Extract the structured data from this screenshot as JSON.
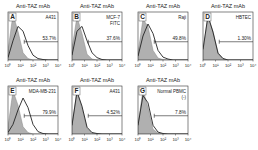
{
  "chart_data": [
    {
      "type": "line",
      "panel_label": "A",
      "title": "Anti-TAZ mAb",
      "annotations": [
        "A431",
        "53.7%"
      ],
      "gate": [
        20,
        10000
      ],
      "log": "x",
      "tick_labels": "x",
      "xlim": [
        1,
        10000
      ],
      "ylim": [
        0,
        100
      ],
      "xticks": [
        {
          "value": 1,
          "label": "10⁰"
        },
        {
          "value": 10,
          "label": "10¹"
        },
        {
          "value": 100,
          "label": "10²"
        },
        {
          "value": 1000,
          "label": "10³"
        },
        {
          "value": 10000,
          "label": "10⁴"
        }
      ],
      "x": [
        1,
        2.5,
        6.3,
        16,
        40,
        100,
        250,
        630,
        1600,
        4000,
        10000
      ],
      "series": [
        {
          "type": "area",
          "color": "#b0b0b0",
          "values": [
            20,
            95,
            60,
            15,
            3,
            0,
            0,
            0,
            0,
            0,
            0
          ]
        },
        {
          "type": "line",
          "color": "#222222",
          "values": [
            5,
            40,
            70,
            60,
            30,
            10,
            3,
            1,
            0,
            0,
            0
          ]
        }
      ]
    },
    {
      "type": "line",
      "panel_label": "B",
      "title": "Anti-TAZ mAb",
      "annotations": [
        "MCF-7",
        "FITC",
        "37.6%"
      ],
      "gate": [
        20,
        10000
      ],
      "log": "x",
      "tick_labels": "x",
      "xlim": [
        1,
        10000
      ],
      "ylim": [
        0,
        100
      ],
      "xticks": [
        {
          "value": 1,
          "label": "10⁰"
        },
        {
          "value": 10,
          "label": "10¹"
        },
        {
          "value": 100,
          "label": "10²"
        },
        {
          "value": 1000,
          "label": "10³"
        },
        {
          "value": 10000,
          "label": "10⁴"
        }
      ],
      "x": [
        1,
        2.5,
        6.3,
        16,
        40,
        100,
        250,
        630,
        1600,
        4000,
        10000
      ],
      "series": [
        {
          "type": "area",
          "color": "#b0b0b0",
          "values": [
            25,
            90,
            55,
            12,
            2,
            0,
            0,
            0,
            0,
            0,
            0
          ]
        },
        {
          "type": "line",
          "color": "#222222",
          "values": [
            10,
            60,
            70,
            40,
            15,
            5,
            1,
            0,
            0,
            0,
            0
          ]
        }
      ]
    },
    {
      "type": "line",
      "panel_label": "C",
      "title": "Anti-TAZ mAb",
      "annotations": [
        "Raji",
        "49.8%"
      ],
      "gate": [
        20,
        10000
      ],
      "log": "x",
      "tick_labels": "x",
      "xlim": [
        1,
        10000
      ],
      "ylim": [
        0,
        100
      ],
      "xticks": [
        {
          "value": 1,
          "label": "10⁰"
        },
        {
          "value": 10,
          "label": "10¹"
        },
        {
          "value": 100,
          "label": "10²"
        },
        {
          "value": 1000,
          "label": "10³"
        },
        {
          "value": 10000,
          "label": "10⁴"
        }
      ],
      "x": [
        1,
        2.5,
        6.3,
        16,
        40,
        100,
        250,
        630,
        1600,
        4000,
        10000
      ],
      "series": [
        {
          "type": "area",
          "color": "#b0b0b0",
          "values": [
            15,
            85,
            70,
            20,
            4,
            1,
            0,
            0,
            0,
            0,
            0
          ]
        },
        {
          "type": "line",
          "color": "#222222",
          "values": [
            8,
            50,
            75,
            55,
            20,
            6,
            2,
            0,
            0,
            0,
            0
          ]
        }
      ]
    },
    {
      "type": "line",
      "panel_label": "D",
      "title": "Anti-TAZ mAb",
      "annotations": [
        "HBTEC",
        "1.30%"
      ],
      "gate": [
        20,
        10000
      ],
      "log": "x",
      "tick_labels": "x",
      "xlim": [
        1,
        10000
      ],
      "ylim": [
        0,
        100
      ],
      "xticks": [
        {
          "value": 1,
          "label": "10⁰"
        },
        {
          "value": 10,
          "label": "10¹"
        },
        {
          "value": 100,
          "label": "10²"
        },
        {
          "value": 1000,
          "label": "10³"
        },
        {
          "value": 10000,
          "label": "10⁴"
        }
      ],
      "x": [
        1,
        2.5,
        6.3,
        16,
        40,
        100,
        250,
        630,
        1600,
        4000,
        10000
      ],
      "series": [
        {
          "type": "area",
          "color": "#b0b0b0",
          "values": [
            20,
            90,
            60,
            15,
            3,
            0,
            0,
            0,
            0,
            0,
            0
          ]
        },
        {
          "type": "line",
          "color": "#222222",
          "values": [
            22,
            92,
            58,
            14,
            3,
            0,
            0,
            0,
            0,
            0,
            0
          ]
        }
      ]
    },
    {
      "type": "line",
      "panel_label": "E",
      "title": "Anti-TAZ mAb",
      "annotations": [
        "MDA-MB-231",
        "79.9%"
      ],
      "gate": [
        20,
        10000
      ],
      "log": "x",
      "tick_labels": "x",
      "xlim": [
        1,
        10000
      ],
      "ylim": [
        0,
        100
      ],
      "xticks": [
        {
          "value": 1,
          "label": "10⁰"
        },
        {
          "value": 10,
          "label": "10¹"
        },
        {
          "value": 100,
          "label": "10²"
        },
        {
          "value": 1000,
          "label": "10³"
        },
        {
          "value": 10000,
          "label": "10⁴"
        }
      ],
      "x": [
        1,
        2.5,
        6.3,
        16,
        40,
        100,
        250,
        630,
        1600,
        4000,
        10000
      ],
      "series": [
        {
          "type": "area",
          "color": "#b0b0b0",
          "values": [
            15,
            90,
            60,
            15,
            3,
            0,
            0,
            0,
            0,
            0,
            0
          ]
        },
        {
          "type": "line",
          "color": "#222222",
          "values": [
            3,
            20,
            50,
            75,
            55,
            20,
            5,
            1,
            0,
            0,
            0
          ]
        }
      ]
    },
    {
      "type": "line",
      "panel_label": "F",
      "title": "Anti-TAZ mAb",
      "annotations": [
        "A431",
        "4.52%"
      ],
      "gate": [
        20,
        10000
      ],
      "log": "x",
      "tick_labels": "x",
      "xlim": [
        1,
        10000
      ],
      "ylim": [
        0,
        100
      ],
      "xticks": [
        {
          "value": 1,
          "label": "10⁰"
        },
        {
          "value": 10,
          "label": "10¹"
        },
        {
          "value": 100,
          "label": "10²"
        },
        {
          "value": 1000,
          "label": "10³"
        },
        {
          "value": 10000,
          "label": "10⁴"
        }
      ],
      "x": [
        1,
        2.5,
        6.3,
        16,
        40,
        100,
        250,
        630,
        1600,
        4000,
        10000
      ],
      "series": [
        {
          "type": "area",
          "color": "#b0b0b0",
          "values": [
            20,
            90,
            55,
            12,
            2,
            0,
            0,
            0,
            0,
            0,
            0
          ]
        },
        {
          "type": "line",
          "color": "#222222",
          "values": [
            18,
            88,
            58,
            14,
            3,
            1,
            0,
            0,
            0,
            0,
            0
          ]
        }
      ]
    },
    {
      "type": "line",
      "panel_label": "G",
      "title": "Anti-TAZ mAb",
      "annotations": [
        "Normal PBMC",
        "(-)",
        "7.8%"
      ],
      "gate": [
        20,
        10000
      ],
      "log": "x",
      "tick_labels": "x",
      "xlim": [
        1,
        10000
      ],
      "ylim": [
        0,
        100
      ],
      "xticks": [
        {
          "value": 1,
          "label": "10⁰"
        },
        {
          "value": 10,
          "label": "10¹"
        },
        {
          "value": 100,
          "label": "10²"
        },
        {
          "value": 1000,
          "label": "10³"
        },
        {
          "value": 10000,
          "label": "10⁴"
        }
      ],
      "x": [
        1,
        2.5,
        6.3,
        16,
        40,
        100,
        250,
        630,
        1600,
        4000,
        10000
      ],
      "series": [
        {
          "type": "area",
          "color": "#b0b0b0",
          "values": [
            20,
            92,
            55,
            10,
            2,
            0,
            0,
            0,
            0,
            0,
            0
          ]
        },
        {
          "type": "line",
          "color": "#222222",
          "values": [
            18,
            80,
            65,
            18,
            4,
            1,
            0,
            0,
            0,
            0,
            0
          ]
        }
      ]
    }
  ]
}
